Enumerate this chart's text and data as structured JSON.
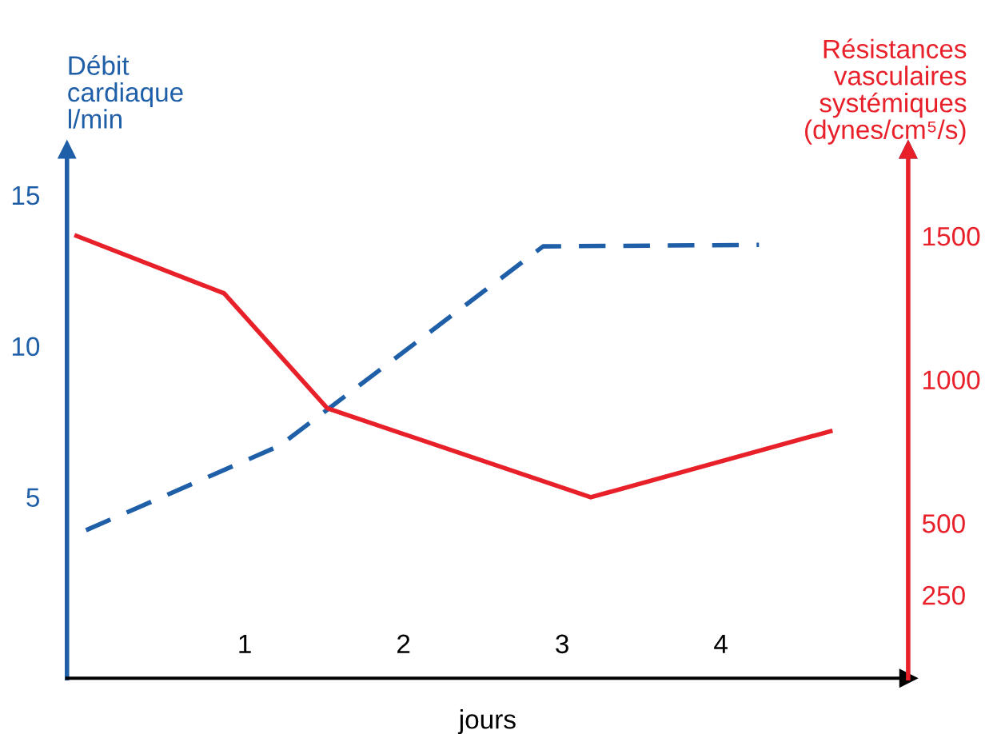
{
  "chart_data": {
    "type": "line",
    "xlabel": "jours",
    "ylabel": "Débit\ncardiaque\nl/min",
    "y2label": "Résistances\nvasculaires\nsystémiques\n(dynes/cm⁵/s)",
    "xlim": [
      -0.12,
      5.18
    ],
    "xticks": [
      1,
      2,
      3,
      4
    ],
    "ylim": [
      -1,
      16.5
    ],
    "yticks": [
      5,
      10,
      15
    ],
    "y2lim": [
      -40,
      1800
    ],
    "y2ticks": [
      250,
      500,
      1000,
      1500
    ],
    "grid": false,
    "legend": false,
    "marker": "none",
    "series": [
      {
        "color": "#1f5fa8",
        "line_style": "dashed",
        "x": [
          0,
          1.22,
          2.88,
          4.24
        ],
        "values": [
          3.9,
          6.7,
          13.3,
          13.35
        ]
      },
      {
        "color": "#e8202a",
        "line_style": "solid",
        "axis": "y2",
        "x": [
          -0.06,
          0.87,
          1.52,
          3.18,
          4.69
        ],
        "values": [
          1500,
          1300,
          900,
          590,
          820
        ]
      }
    ]
  }
}
